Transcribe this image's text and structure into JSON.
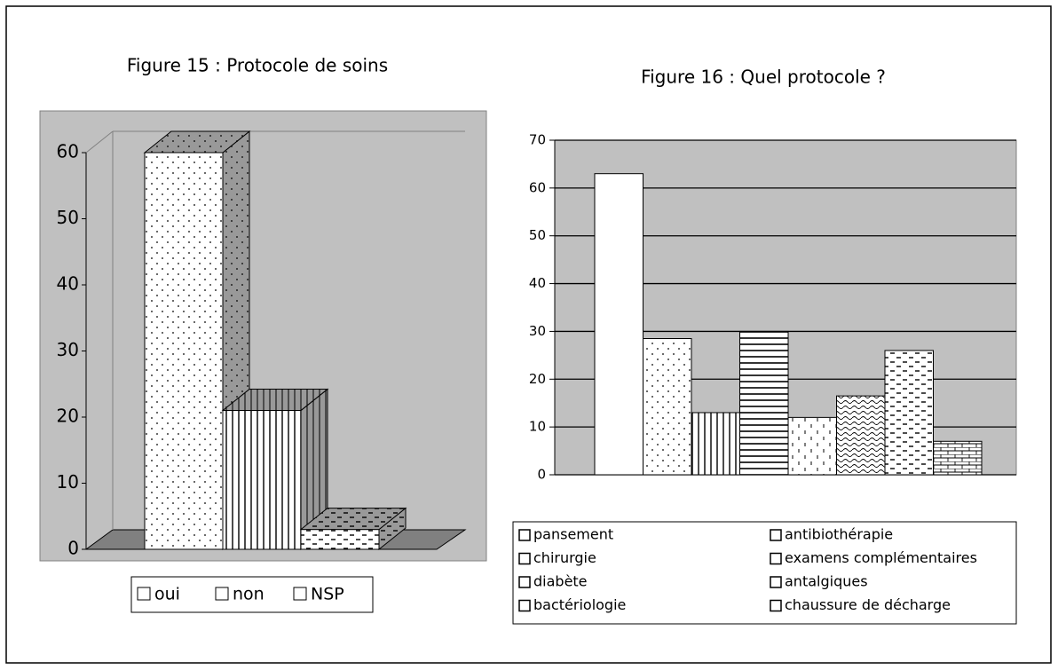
{
  "chart_data": [
    {
      "type": "bar3d",
      "title": "Figure 15 : Protocole de soins",
      "series": [
        {
          "name": "oui",
          "color": "#ffffff",
          "values": [
            60
          ]
        },
        {
          "name": "non",
          "color": "#ffffff",
          "values": [
            21
          ]
        },
        {
          "name": "NSP",
          "color": "#ffffff",
          "values": [
            3
          ]
        }
      ],
      "ylim": [
        0,
        60
      ],
      "yticks": [
        0,
        10,
        20,
        30,
        40,
        50,
        60
      ],
      "background": "#c0c0c0"
    },
    {
      "type": "bar",
      "title": "Figure 16 : Quel protocole ?",
      "series": [
        {
          "name": "pansement",
          "color": "#ffffff",
          "values": [
            63
          ]
        },
        {
          "name": "antibiothérapie",
          "color": "#ffffff",
          "values": [
            28.5
          ]
        },
        {
          "name": "chirurgie",
          "color": "#ffffff",
          "values": [
            13
          ]
        },
        {
          "name": "examens complémentaires",
          "color": "#ffffff",
          "values": [
            30
          ]
        },
        {
          "name": "diabète",
          "color": "#ffffff",
          "values": [
            12
          ]
        },
        {
          "name": "antalgiques",
          "color": "#ffffff",
          "values": [
            16.5
          ]
        },
        {
          "name": "bactériologie",
          "color": "#ffffff",
          "values": [
            26
          ]
        },
        {
          "name": "chaussure de décharge",
          "color": "#ffffff",
          "values": [
            7
          ]
        }
      ],
      "ylim": [
        0,
        70
      ],
      "yticks": [
        0,
        10,
        20,
        30,
        40,
        50,
        60,
        70
      ],
      "grid": true,
      "background": "#c0c0c0"
    }
  ]
}
